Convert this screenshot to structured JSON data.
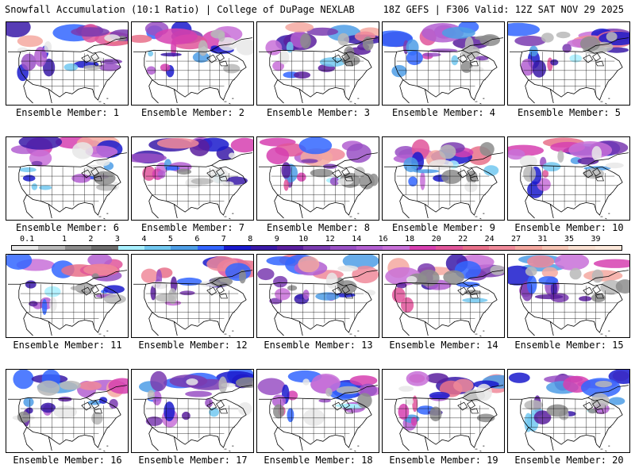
{
  "header": {
    "title": "Snowfall Accumulation (10:1 Ratio) | College of DuPage NEXLAB",
    "run_info": "18Z GEFS | F306 Valid: 12Z SAT NOV 29 2025"
  },
  "legend": {
    "tick_labels": [
      "0.1",
      "1",
      "2",
      "3",
      "4",
      "5",
      "6",
      "7",
      "8",
      "9",
      "10",
      "12",
      "14",
      "16",
      "18",
      "20",
      "22",
      "24",
      "27",
      "31",
      "35",
      "39"
    ],
    "colors": [
      "#e8e8e8",
      "#b9b9b9",
      "#8c8c8c",
      "#6d6d6d",
      "#a8f0ff",
      "#72c8f0",
      "#4e9ee6",
      "#3366ff",
      "#1a1acc",
      "#3a1aa8",
      "#5a1f9e",
      "#7a3bb0",
      "#9950c4",
      "#b35fd1",
      "#c870d8",
      "#d63fb0",
      "#e0559a",
      "#e8708a",
      "#f08a9a",
      "#f4a8a0",
      "#f7c5b5",
      "#fadfd0",
      "#fde8da"
    ]
  },
  "panels": [
    {
      "label": "Ensemble Member: 1"
    },
    {
      "label": "Ensemble Member: 2"
    },
    {
      "label": "Ensemble Member: 3"
    },
    {
      "label": "Ensemble Member: 4"
    },
    {
      "label": "Ensemble Member: 5"
    },
    {
      "label": "Ensemble Member: 6"
    },
    {
      "label": "Ensemble Member: 7"
    },
    {
      "label": "Ensemble Member: 8"
    },
    {
      "label": "Ensemble Member: 9"
    },
    {
      "label": "Ensemble Member: 10"
    },
    {
      "label": "Ensemble Member: 11"
    },
    {
      "label": "Ensemble Member: 12"
    },
    {
      "label": "Ensemble Member: 13"
    },
    {
      "label": "Ensemble Member: 14"
    },
    {
      "label": "Ensemble Member: 15"
    },
    {
      "label": "Ensemble Member: 16"
    },
    {
      "label": "Ensemble Member: 17"
    },
    {
      "label": "Ensemble Member: 18"
    },
    {
      "label": "Ensemble Member: 19"
    },
    {
      "label": "Ensemble Member: 20"
    }
  ]
}
